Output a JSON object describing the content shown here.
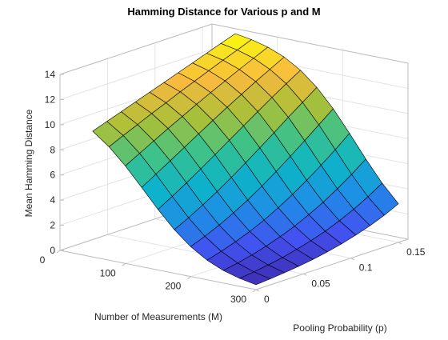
{
  "chart_data": {
    "type": "surface",
    "title": "Hamming Distance for Various p and M",
    "xlabel": "Number of Measurements (M)",
    "ylabel": "Pooling Probability (p)",
    "zlabel": "Mean Hamming Distance",
    "x": [
      50,
      75,
      100,
      125,
      150,
      175,
      200,
      225,
      250,
      275,
      300
    ],
    "y": [
      0,
      0.015,
      0.03,
      0.045,
      0.06,
      0.075,
      0.09,
      0.105,
      0.12,
      0.135,
      0.15
    ],
    "z": [
      [
        10,
        9.02,
        7.76,
        6.31,
        4.82,
        3.47,
        2.38,
        1.56,
        1.0,
        0.63,
        0.39
      ],
      [
        10.4,
        9.54,
        8.38,
        6.99,
        5.48,
        4.04,
        2.82,
        1.89,
        1.22,
        0.77,
        0.48
      ],
      [
        10.8,
        10.04,
        8.99,
        7.67,
        6.18,
        4.68,
        3.34,
        2.27,
        1.48,
        0.95,
        0.59
      ],
      [
        11.2,
        10.54,
        9.61,
        8.37,
        6.91,
        5.37,
        3.93,
        2.72,
        1.81,
        1.16,
        0.73
      ],
      [
        11.6,
        11.02,
        10.19,
        9.07,
        7.67,
        6.12,
        4.58,
        3.24,
        2.19,
        1.43,
        0.9
      ],
      [
        12.0,
        11.51,
        10.78,
        9.76,
        8.44,
        6.9,
        5.31,
        3.85,
        2.65,
        1.75,
        1.12
      ],
      [
        12.4,
        11.98,
        11.34,
        10.43,
        9.21,
        7.72,
        6.1,
        4.53,
        3.18,
        2.13,
        1.38
      ],
      [
        12.8,
        12.44,
        11.89,
        11.08,
        9.97,
        8.55,
        6.93,
        5.28,
        3.79,
        2.59,
        1.7
      ],
      [
        13.2,
        12.9,
        12.43,
        11.72,
        10.72,
        9.4,
        7.8,
        6.1,
        4.49,
        3.12,
        2.08
      ],
      [
        13.6,
        13.34,
        12.94,
        12.32,
        11.44,
        10.21,
        8.69,
        6.97,
        5.26,
        3.74,
        2.53
      ],
      [
        14.0,
        13.79,
        13.45,
        12.92,
        12.13,
        11.03,
        9.59,
        7.89,
        6.11,
        4.45,
        3.07
      ]
    ],
    "xlim": [
      0,
      300
    ],
    "xticks": [
      0,
      100,
      200,
      300
    ],
    "ylim": [
      0,
      0.16
    ],
    "yticks": [
      0,
      0.05,
      0.1,
      0.15
    ],
    "zlim": [
      0,
      14
    ],
    "zticks": [
      0,
      2,
      4,
      6,
      8,
      10,
      12,
      14
    ],
    "grid": true,
    "colormap": [
      "#3e26a8",
      "#4352f0",
      "#1e8fe6",
      "#0db4c8",
      "#3cc28a",
      "#a9c038",
      "#f8ba3e",
      "#f9fb0e"
    ]
  }
}
